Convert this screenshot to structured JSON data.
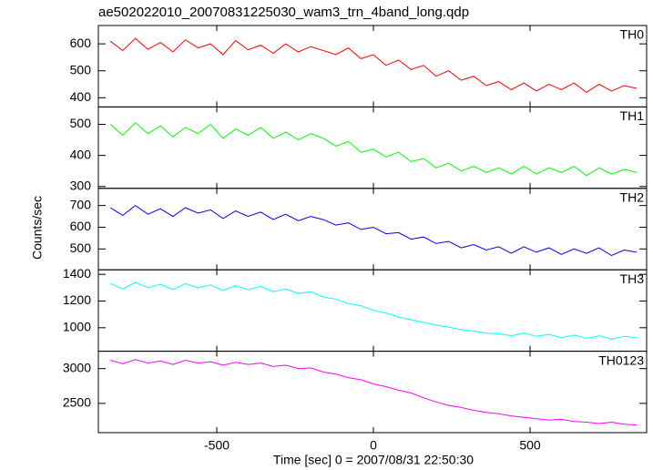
{
  "chart_data": {
    "type": "line",
    "title": "ae502022010_20070831225030_wam3_trn_4band_long.qdp",
    "xlabel": "Time [sec] 0 = 2007/08/31 22:50:30",
    "ylabel": "Counts/sec",
    "xlim": [
      -878,
      872
    ],
    "xticks": [
      -500,
      0,
      500
    ],
    "x": [
      -840,
      -800,
      -760,
      -720,
      -680,
      -640,
      -600,
      -560,
      -520,
      -480,
      -440,
      -400,
      -360,
      -320,
      -280,
      -240,
      -200,
      -160,
      -120,
      -80,
      -40,
      0,
      40,
      80,
      120,
      160,
      200,
      240,
      280,
      320,
      360,
      400,
      440,
      480,
      520,
      560,
      600,
      640,
      680,
      720,
      760,
      800,
      840
    ],
    "series": [
      {
        "name": "TH0",
        "color": "#ff0000",
        "ylim": [
          366,
          668
        ],
        "yticks": [
          400,
          500,
          600
        ],
        "values": [
          610,
          575,
          620,
          580,
          605,
          570,
          615,
          585,
          600,
          560,
          612,
          578,
          595,
          565,
          600,
          570,
          590,
          575,
          560,
          585,
          545,
          560,
          520,
          540,
          505,
          520,
          480,
          500,
          465,
          480,
          445,
          460,
          430,
          455,
          425,
          450,
          430,
          455,
          420,
          450,
          425,
          445,
          435
        ]
      },
      {
        "name": "TH1",
        "color": "#00ff00",
        "ylim": [
          294,
          556
        ],
        "yticks": [
          300,
          400,
          500
        ],
        "values": [
          500,
          465,
          505,
          470,
          495,
          460,
          490,
          470,
          500,
          455,
          485,
          465,
          490,
          455,
          475,
          450,
          470,
          455,
          430,
          445,
          410,
          420,
          395,
          410,
          380,
          390,
          360,
          375,
          350,
          365,
          345,
          360,
          340,
          365,
          340,
          360,
          345,
          365,
          335,
          360,
          340,
          355,
          345
        ]
      },
      {
        "name": "TH2",
        "color": "#0000ff",
        "ylim": [
          404,
          779
        ],
        "yticks": [
          500,
          600,
          700
        ],
        "values": [
          690,
          655,
          700,
          660,
          685,
          650,
          690,
          665,
          680,
          640,
          675,
          650,
          670,
          635,
          660,
          630,
          650,
          635,
          610,
          620,
          590,
          600,
          570,
          575,
          545,
          555,
          525,
          535,
          505,
          520,
          495,
          510,
          480,
          510,
          485,
          505,
          475,
          500,
          480,
          505,
          470,
          495,
          485
        ]
      },
      {
        "name": "TH3",
        "color": "#00ffff",
        "ylim": [
          824,
          1434
        ],
        "yticks": [
          1000,
          1200,
          1400
        ],
        "values": [
          1330,
          1290,
          1340,
          1300,
          1325,
          1285,
          1330,
          1300,
          1320,
          1280,
          1315,
          1285,
          1310,
          1270,
          1290,
          1255,
          1270,
          1230,
          1215,
          1180,
          1165,
          1130,
          1110,
          1080,
          1060,
          1040,
          1020,
          1005,
          985,
          975,
          960,
          955,
          940,
          960,
          935,
          950,
          925,
          945,
          920,
          940,
          915,
          935,
          925
        ]
      },
      {
        "name": "TH0123",
        "color": "#ff00ff",
        "ylim": [
          2079,
          3250
        ],
        "yticks": [
          2500,
          3000
        ],
        "values": [
          3120,
          3070,
          3130,
          3080,
          3110,
          3060,
          3120,
          3080,
          3100,
          3050,
          3090,
          3060,
          3080,
          3030,
          3050,
          3000,
          3010,
          2950,
          2920,
          2870,
          2840,
          2780,
          2740,
          2690,
          2650,
          2580,
          2520,
          2470,
          2440,
          2400,
          2370,
          2350,
          2320,
          2300,
          2280,
          2260,
          2270,
          2240,
          2230,
          2210,
          2230,
          2200,
          2190
        ]
      }
    ]
  }
}
